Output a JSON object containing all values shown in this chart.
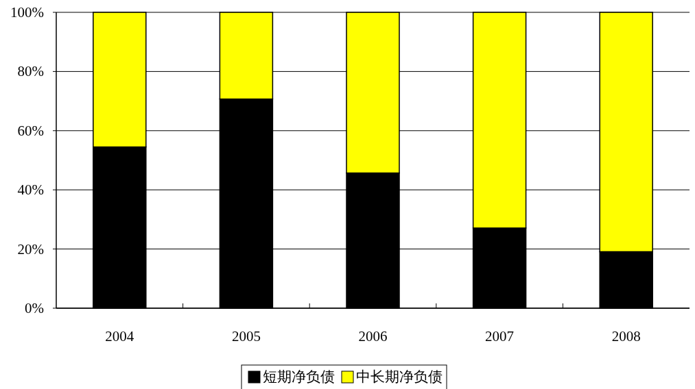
{
  "chart_data": {
    "type": "bar",
    "stacked": true,
    "categories": [
      "2004",
      "2005",
      "2006",
      "2007",
      "2008"
    ],
    "series": [
      {
        "name": "短期净负债",
        "color": "#000000",
        "values": [
          54.5,
          70.7,
          45.7,
          27.1,
          19.1
        ]
      },
      {
        "name": "中长期净负债",
        "color": "#ffff00",
        "values": [
          45.5,
          29.3,
          54.3,
          72.9,
          80.9
        ]
      }
    ],
    "ylim": [
      0,
      100
    ],
    "yticks": [
      {
        "value": 0,
        "label": "0%"
      },
      {
        "value": 20,
        "label": "20%"
      },
      {
        "value": 40,
        "label": "40%"
      },
      {
        "value": 60,
        "label": "60%"
      },
      {
        "value": 80,
        "label": "80%"
      },
      {
        "value": 100,
        "label": "100%"
      }
    ],
    "grid": "y",
    "legend": "bottom"
  }
}
